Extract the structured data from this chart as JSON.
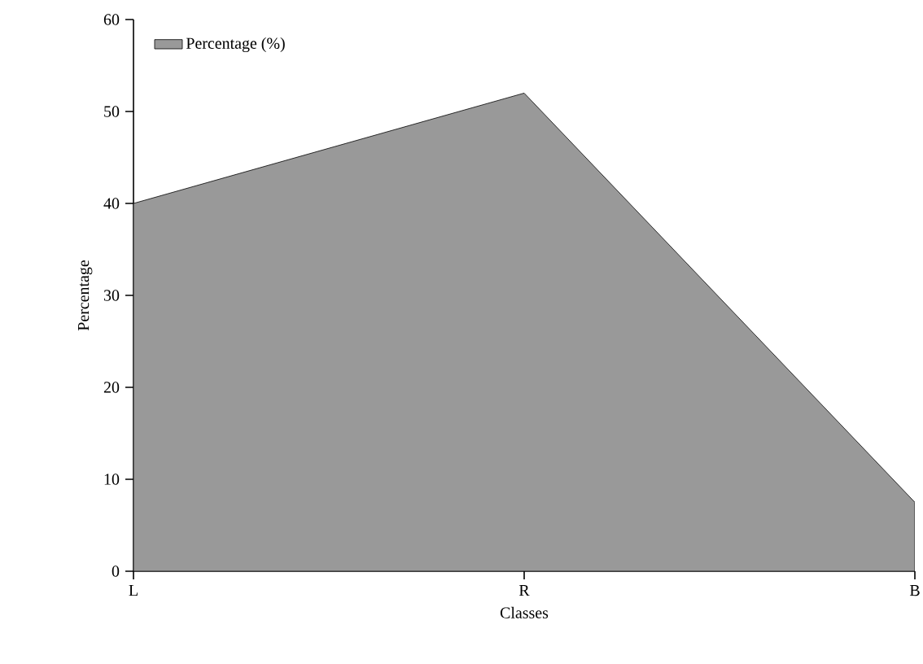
{
  "chart_data": {
    "type": "area",
    "xlabel": "Classes",
    "ylabel": "Percentage",
    "categories": [
      "L",
      "R",
      "B"
    ],
    "series": [
      {
        "name": "Percentage (%)",
        "color": "#999999",
        "values": [
          40,
          52,
          7.5
        ]
      }
    ],
    "ylim": [
      0,
      60
    ],
    "yticks": [
      0,
      10,
      20,
      30,
      40,
      50,
      60
    ],
    "grid": false,
    "legend": "top left"
  }
}
